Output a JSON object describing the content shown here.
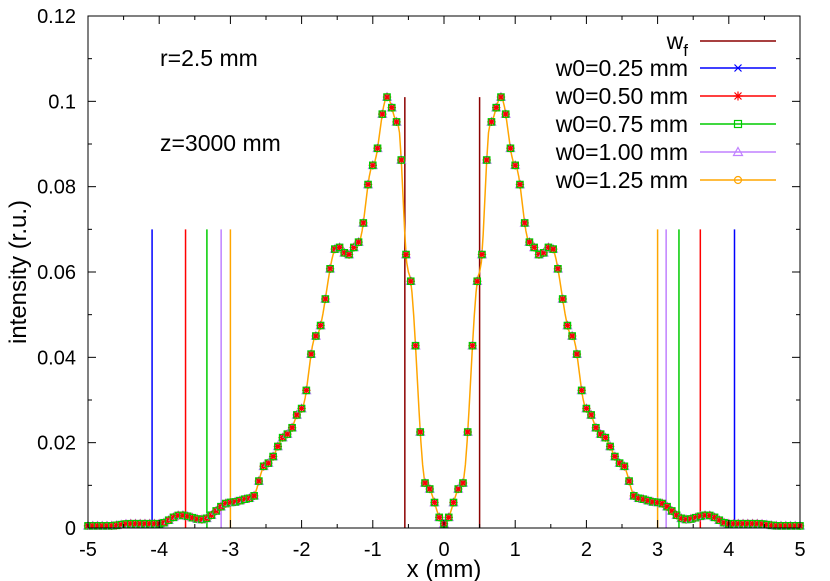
{
  "chart_data": {
    "type": "line",
    "xlabel": "x (mm)",
    "ylabel": "intensity (r.u.)",
    "xlim": [
      -5,
      5
    ],
    "ylim": [
      0,
      0.12
    ],
    "x_ticks": [
      -5,
      -4,
      -3,
      -2,
      -1,
      0,
      1,
      2,
      3,
      4,
      5
    ],
    "y_ticks": [
      0,
      0.02,
      0.04,
      0.06,
      0.08,
      0.1,
      0.12
    ],
    "x_tick_labels": [
      "-5",
      "-4",
      "-3",
      "-2",
      "-1",
      "0",
      "1",
      "2",
      "3",
      "4",
      "5"
    ],
    "y_tick_labels": [
      "0",
      "0.02",
      "0.04",
      "0.06",
      "0.08",
      "0.1",
      "0.12"
    ],
    "grid": false,
    "legend_position": "top-right",
    "annotations": [
      "r=2.5 mm",
      "z=3000 mm"
    ],
    "profile": {
      "x": [
        0,
        0.25,
        0.5,
        0.65,
        0.8,
        1.0,
        1.2,
        1.35,
        1.5,
        1.8,
        2.0,
        2.2,
        2.5,
        2.7,
        3.0,
        3.4,
        3.7,
        4.0,
        4.4,
        4.7,
        5.0
      ],
      "y": [
        0.001,
        0.01,
        0.06,
        0.095,
        0.101,
        0.085,
        0.067,
        0.064,
        0.066,
        0.045,
        0.028,
        0.022,
        0.015,
        0.007,
        0.006,
        0.002,
        0.003,
        0.001,
        0.001,
        0.0005,
        0.0005
      ]
    },
    "series": [
      {
        "name": "w<sub>f</sub>",
        "legend_label": "w",
        "legend_sub": "f",
        "color": "#8b0000",
        "marker": "none",
        "lines_x": [
          -0.55,
          0.5
        ],
        "line_height": 0.101
      },
      {
        "name": "w0=0.25 mm",
        "color": "#0000ff",
        "marker": "x",
        "lines_x": [
          -4.1,
          4.08
        ],
        "line_height": 0.07
      },
      {
        "name": "w0=0.50 mm",
        "color": "#ff0000",
        "marker": "star",
        "lines_x": [
          -3.63,
          3.6
        ],
        "line_height": 0.07
      },
      {
        "name": "w0=0.75 mm",
        "color": "#00cc00",
        "marker": "square",
        "lines_x": [
          -3.33,
          3.3
        ],
        "line_height": 0.07
      },
      {
        "name": "w0=1.00 mm",
        "color": "#c080ff",
        "marker": "triangle",
        "lines_x": [
          -3.13,
          3.12
        ],
        "line_height": 0.07
      },
      {
        "name": "w0=1.25 mm",
        "color": "#ffa500",
        "marker": "circle",
        "lines_x": [
          -3.0,
          3.0
        ],
        "line_height": 0.07
      }
    ]
  }
}
